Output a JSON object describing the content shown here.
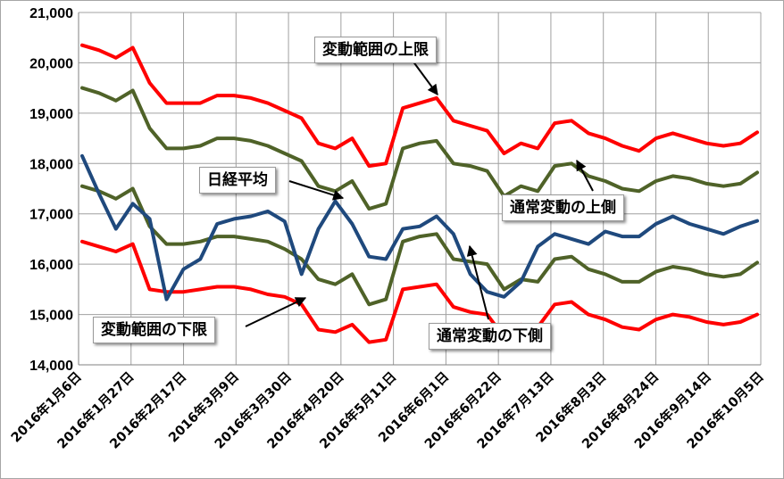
{
  "colors": {
    "upper_range": "#ff0000",
    "normal_upper": "#4f6228",
    "nikkei": "#1f497d",
    "normal_lower": "#4f6228",
    "lower_range": "#ff0000",
    "grid": "#a0a0a0"
  },
  "chart_data": {
    "type": "line",
    "title": "",
    "xlabel": "",
    "ylabel": "",
    "ylim": [
      14000,
      21000
    ],
    "yticks": [
      "14,000",
      "15,000",
      "16,000",
      "17,000",
      "18,000",
      "19,000",
      "20,000",
      "21,000"
    ],
    "x_tick_labels": [
      "2016年1月6日",
      "2016年1月27日",
      "2016年2月17日",
      "2016年3月9日",
      "2016年3月30日",
      "2016年4月20日",
      "2016年5月11日",
      "2016年6月1日",
      "2016年6月22日",
      "2016年7月13日",
      "2016年8月3日",
      "2016年8月24日",
      "2016年9月14日",
      "2016年10月5日"
    ],
    "x": [
      "2016-01-06",
      "2016-01-13",
      "2016-01-20",
      "2016-01-27",
      "2016-02-03",
      "2016-02-10",
      "2016-02-17",
      "2016-02-24",
      "2016-03-02",
      "2016-03-09",
      "2016-03-16",
      "2016-03-23",
      "2016-03-30",
      "2016-04-06",
      "2016-04-13",
      "2016-04-20",
      "2016-04-27",
      "2016-05-04",
      "2016-05-11",
      "2016-05-18",
      "2016-05-25",
      "2016-06-01",
      "2016-06-08",
      "2016-06-15",
      "2016-06-22",
      "2016-06-29",
      "2016-07-06",
      "2016-07-13",
      "2016-07-20",
      "2016-07-27",
      "2016-08-03",
      "2016-08-10",
      "2016-08-17",
      "2016-08-24",
      "2016-08-31",
      "2016-09-07",
      "2016-09-14",
      "2016-09-21",
      "2016-09-28",
      "2016-10-05",
      "2016-10-12"
    ],
    "series": [
      {
        "name": "変動範囲の上限",
        "values": [
          20350,
          20250,
          20100,
          20300,
          19600,
          19200,
          19200,
          19200,
          19350,
          19350,
          19300,
          19200,
          19050,
          18900,
          18400,
          18300,
          18500,
          17950,
          18000,
          19100,
          19200,
          19300,
          18850,
          18750,
          18650,
          18200,
          18400,
          18300,
          18800,
          18850,
          18600,
          18500,
          18350,
          18250,
          18500,
          18600,
          18500,
          18400,
          18350,
          18400,
          18620
        ]
      },
      {
        "name": "通常変動の上側",
        "values": [
          19500,
          19400,
          19250,
          19450,
          18700,
          18300,
          18300,
          18350,
          18500,
          18500,
          18450,
          18350,
          18200,
          18050,
          17550,
          17450,
          17650,
          17100,
          17200,
          18300,
          18400,
          18450,
          18000,
          17950,
          17850,
          17350,
          17550,
          17450,
          17950,
          18000,
          17750,
          17650,
          17500,
          17450,
          17650,
          17750,
          17700,
          17600,
          17550,
          17600,
          17820
        ]
      },
      {
        "name": "日経平均",
        "values": [
          18150,
          17400,
          16700,
          17200,
          16900,
          15300,
          15900,
          16100,
          16800,
          16900,
          16950,
          17050,
          16850,
          15800,
          16700,
          17250,
          16800,
          16150,
          16100,
          16700,
          16750,
          16950,
          16600,
          15800,
          15450,
          15350,
          15650,
          16350,
          16600,
          16500,
          16400,
          16650,
          16550,
          16550,
          16800,
          16950,
          16800,
          16700,
          16600,
          16750,
          16860
        ]
      },
      {
        "name": "通常変動の下側",
        "values": [
          17550,
          17450,
          17300,
          17500,
          16750,
          16400,
          16400,
          16450,
          16550,
          16550,
          16500,
          16450,
          16300,
          16100,
          15700,
          15600,
          15800,
          15200,
          15300,
          16450,
          16550,
          16600,
          16100,
          16050,
          16000,
          15500,
          15700,
          15650,
          16100,
          16150,
          15900,
          15800,
          15650,
          15650,
          15850,
          15950,
          15900,
          15800,
          15750,
          15800,
          16030
        ]
      },
      {
        "name": "変動範囲の下限",
        "values": [
          16450,
          16350,
          16250,
          16400,
          15500,
          15450,
          15450,
          15500,
          15550,
          15550,
          15500,
          15400,
          15350,
          15200,
          14700,
          14650,
          14800,
          14450,
          14500,
          15500,
          15550,
          15600,
          15150,
          15050,
          15000,
          14550,
          14800,
          14750,
          15200,
          15250,
          15000,
          14900,
          14750,
          14700,
          14900,
          15000,
          14950,
          14850,
          14800,
          14850,
          15000
        ]
      }
    ],
    "grid": true,
    "legend": "none"
  },
  "annotations": {
    "upper_range": "変動範囲の上限",
    "nikkei": "日経平均",
    "normal_upper": "通常変動の上側",
    "lower_range": "変動範囲の下限",
    "normal_lower": "通常変動の下側"
  }
}
